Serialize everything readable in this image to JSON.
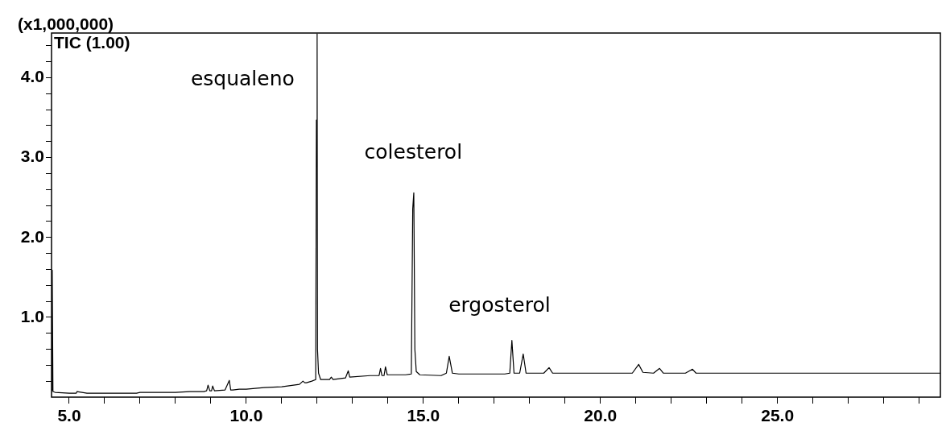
{
  "chart_data": {
    "type": "line",
    "ylabel": "(x1,000,000)",
    "legend": "top left",
    "marker": "none",
    "line_style": "solid",
    "xlim": [
      4.5,
      29.6
    ],
    "ylim": [
      0,
      4.56
    ],
    "xticks": [
      {
        "value": 5,
        "label": "5.0"
      },
      {
        "value": 6,
        "label": null
      },
      {
        "value": 7,
        "label": null
      },
      {
        "value": 8,
        "label": null
      },
      {
        "value": 9,
        "label": null
      },
      {
        "value": 10,
        "label": "10.0"
      },
      {
        "value": 11,
        "label": null
      },
      {
        "value": 12,
        "label": null
      },
      {
        "value": 13,
        "label": null
      },
      {
        "value": 14,
        "label": null
      },
      {
        "value": 15,
        "label": "15.0"
      },
      {
        "value": 16,
        "label": null
      },
      {
        "value": 17,
        "label": null
      },
      {
        "value": 18,
        "label": null
      },
      {
        "value": 19,
        "label": null
      },
      {
        "value": 20,
        "label": "20.0"
      },
      {
        "value": 21,
        "label": null
      },
      {
        "value": 22,
        "label": null
      },
      {
        "value": 23,
        "label": null
      },
      {
        "value": 24,
        "label": null
      },
      {
        "value": 25,
        "label": "25.0"
      },
      {
        "value": 26,
        "label": null
      },
      {
        "value": 27,
        "label": null
      },
      {
        "value": 28,
        "label": null
      },
      {
        "value": 29,
        "label": null
      }
    ],
    "yticks": [
      {
        "value": 0.2,
        "label": null
      },
      {
        "value": 0.4,
        "label": null
      },
      {
        "value": 0.6,
        "label": null
      },
      {
        "value": 0.8,
        "label": null
      },
      {
        "value": 1,
        "label": "1.0"
      },
      {
        "value": 1.2,
        "label": null
      },
      {
        "value": 1.4,
        "label": null
      },
      {
        "value": 1.6,
        "label": null
      },
      {
        "value": 1.8,
        "label": null
      },
      {
        "value": 2,
        "label": "2.0"
      },
      {
        "value": 2.2,
        "label": null
      },
      {
        "value": 2.4,
        "label": null
      },
      {
        "value": 2.6,
        "label": null
      },
      {
        "value": 2.8,
        "label": null
      },
      {
        "value": 3,
        "label": "3.0"
      },
      {
        "value": 3.2,
        "label": null
      },
      {
        "value": 3.4,
        "label": null
      },
      {
        "value": 3.6,
        "label": null
      },
      {
        "value": 3.8,
        "label": null
      },
      {
        "value": 4,
        "label": "4.0"
      },
      {
        "value": 4.2,
        "label": null
      },
      {
        "value": 4.4,
        "label": null
      }
    ],
    "annotations": [
      "esqualeno",
      "colesterol",
      "ergosterol"
    ],
    "series": [
      {
        "name": "TIC (1.00)",
        "color": "#000000",
        "x": [
          4.5,
          4.52,
          4.54,
          4.6,
          5.0,
          5.2,
          5.22,
          5.5,
          6.0,
          6.9,
          7.0,
          7.5,
          8.0,
          8.4,
          8.8,
          8.88,
          8.92,
          8.97,
          9.02,
          9.05,
          9.1,
          9.4,
          9.52,
          9.56,
          9.62,
          9.8,
          10.0,
          10.5,
          11.0,
          11.5,
          11.6,
          11.65,
          11.7,
          11.85,
          11.96,
          11.98,
          12.0,
          12.01,
          12.04,
          12.1,
          12.35,
          12.4,
          12.45,
          12.8,
          12.88,
          12.92,
          13.5,
          13.75,
          13.79,
          13.83,
          13.89,
          13.93,
          13.98,
          14.5,
          14.66,
          14.7,
          14.73,
          14.76,
          14.8,
          14.9,
          15.5,
          15.65,
          15.73,
          15.82,
          16.0,
          16.5,
          17.3,
          17.44,
          17.5,
          17.56,
          17.72,
          17.82,
          17.9,
          18.4,
          18.55,
          18.65,
          19.0,
          20.0,
          20.9,
          21.08,
          21.2,
          21.5,
          21.67,
          21.78,
          22.4,
          22.6,
          22.7,
          24.0,
          26.0,
          28.0,
          29.6
        ],
        "values": [
          0.09,
          1.59,
          0.07,
          0.06,
          0.05,
          0.05,
          0.07,
          0.05,
          0.05,
          0.05,
          0.06,
          0.06,
          0.06,
          0.07,
          0.07,
          0.08,
          0.15,
          0.08,
          0.08,
          0.14,
          0.08,
          0.09,
          0.21,
          0.09,
          0.09,
          0.1,
          0.1,
          0.12,
          0.13,
          0.16,
          0.2,
          0.18,
          0.18,
          0.2,
          0.22,
          3.47,
          4.55,
          0.6,
          0.3,
          0.22,
          0.22,
          0.25,
          0.22,
          0.24,
          0.33,
          0.25,
          0.27,
          0.27,
          0.36,
          0.27,
          0.27,
          0.38,
          0.28,
          0.28,
          0.29,
          2.36,
          2.56,
          0.6,
          0.32,
          0.28,
          0.27,
          0.3,
          0.51,
          0.3,
          0.29,
          0.29,
          0.29,
          0.3,
          0.71,
          0.3,
          0.3,
          0.54,
          0.3,
          0.3,
          0.37,
          0.3,
          0.3,
          0.3,
          0.3,
          0.41,
          0.31,
          0.3,
          0.36,
          0.3,
          0.3,
          0.35,
          0.3,
          0.3,
          0.3,
          0.3,
          0.3
        ]
      }
    ]
  }
}
